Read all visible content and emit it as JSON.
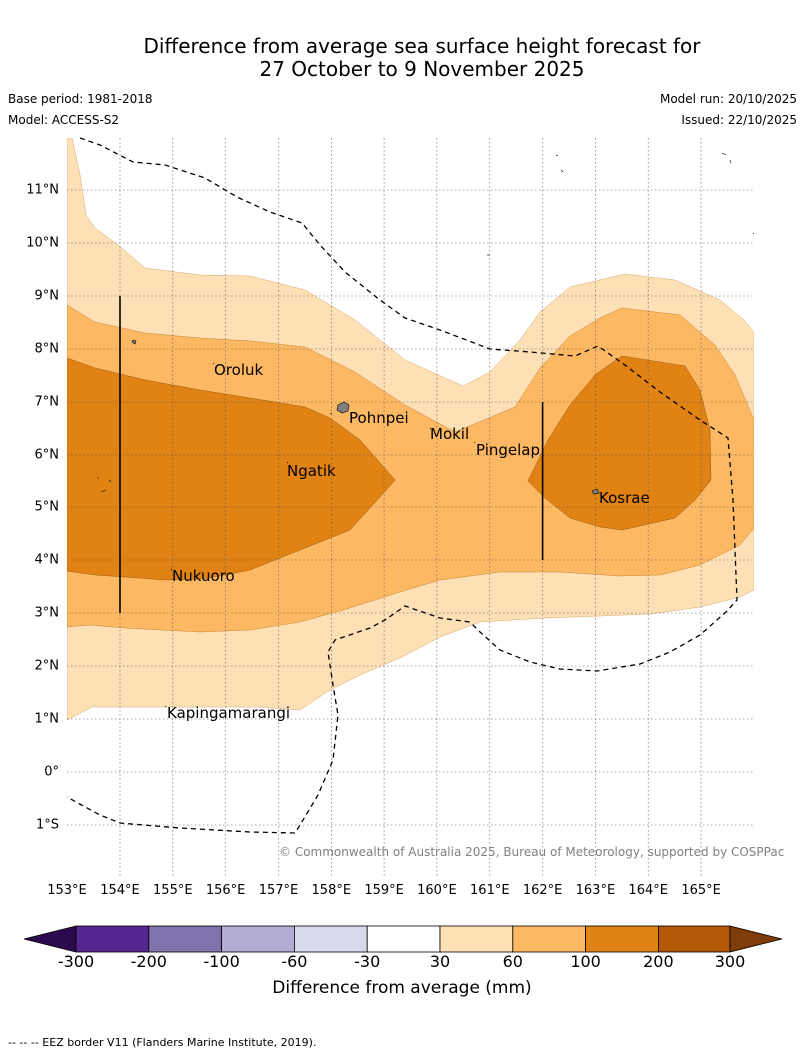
{
  "title": {
    "line1": "Difference from average sea surface height forecast for",
    "line2": "27 October to 9 November 2025"
  },
  "meta": {
    "base_period": "Base period: 1981-2018",
    "model": "Model: ACCESS-S2",
    "model_run": "Model run: 20/10/2025",
    "issued": "Issued: 22/10/2025"
  },
  "axes": {
    "longitudes": [
      "153°E",
      "154°E",
      "155°E",
      "156°E",
      "157°E",
      "158°E",
      "159°E",
      "160°E",
      "161°E",
      "162°E",
      "163°E",
      "164°E",
      "165°E"
    ],
    "latitudes": [
      "11°N",
      "10°N",
      "9°N",
      "8°N",
      "7°N",
      "6°N",
      "5°N",
      "4°N",
      "3°N",
      "2°N",
      "1°N",
      "0°",
      "1°S"
    ]
  },
  "places": {
    "oroluk": "Oroluk",
    "pohnpei": "Pohnpei",
    "mokil": "Mokil",
    "pingelap": "Pingelap",
    "ngatik": "Ngatik",
    "kosrae": "Kosrae",
    "nukuoro": "Nukuoro",
    "kapingamarangi": "Kapingamarangi"
  },
  "copyright": "© Commonwealth of Australia 2025, Bureau of Meteorology, supported by COSPPac",
  "colorbar": {
    "ticks": [
      "-300",
      "-200",
      "-100",
      "-60",
      "-30",
      "30",
      "60",
      "100",
      "200",
      "300"
    ],
    "label": "Difference from average (mm)",
    "colors": {
      "under": "#2d0a4e",
      "c1": "#54278f",
      "c2": "#8073ac",
      "c3": "#b2abd2",
      "c4": "#d8daeb",
      "c5": "#ffffff",
      "c6": "#fee0b6",
      "c7": "#fdb863",
      "c8": "#e08214",
      "c9": "#b35806",
      "over": "#7f3b08"
    }
  },
  "footnote": "--  --  -- EEZ border V11 (Flanders Marine Institute, 2019)."
}
